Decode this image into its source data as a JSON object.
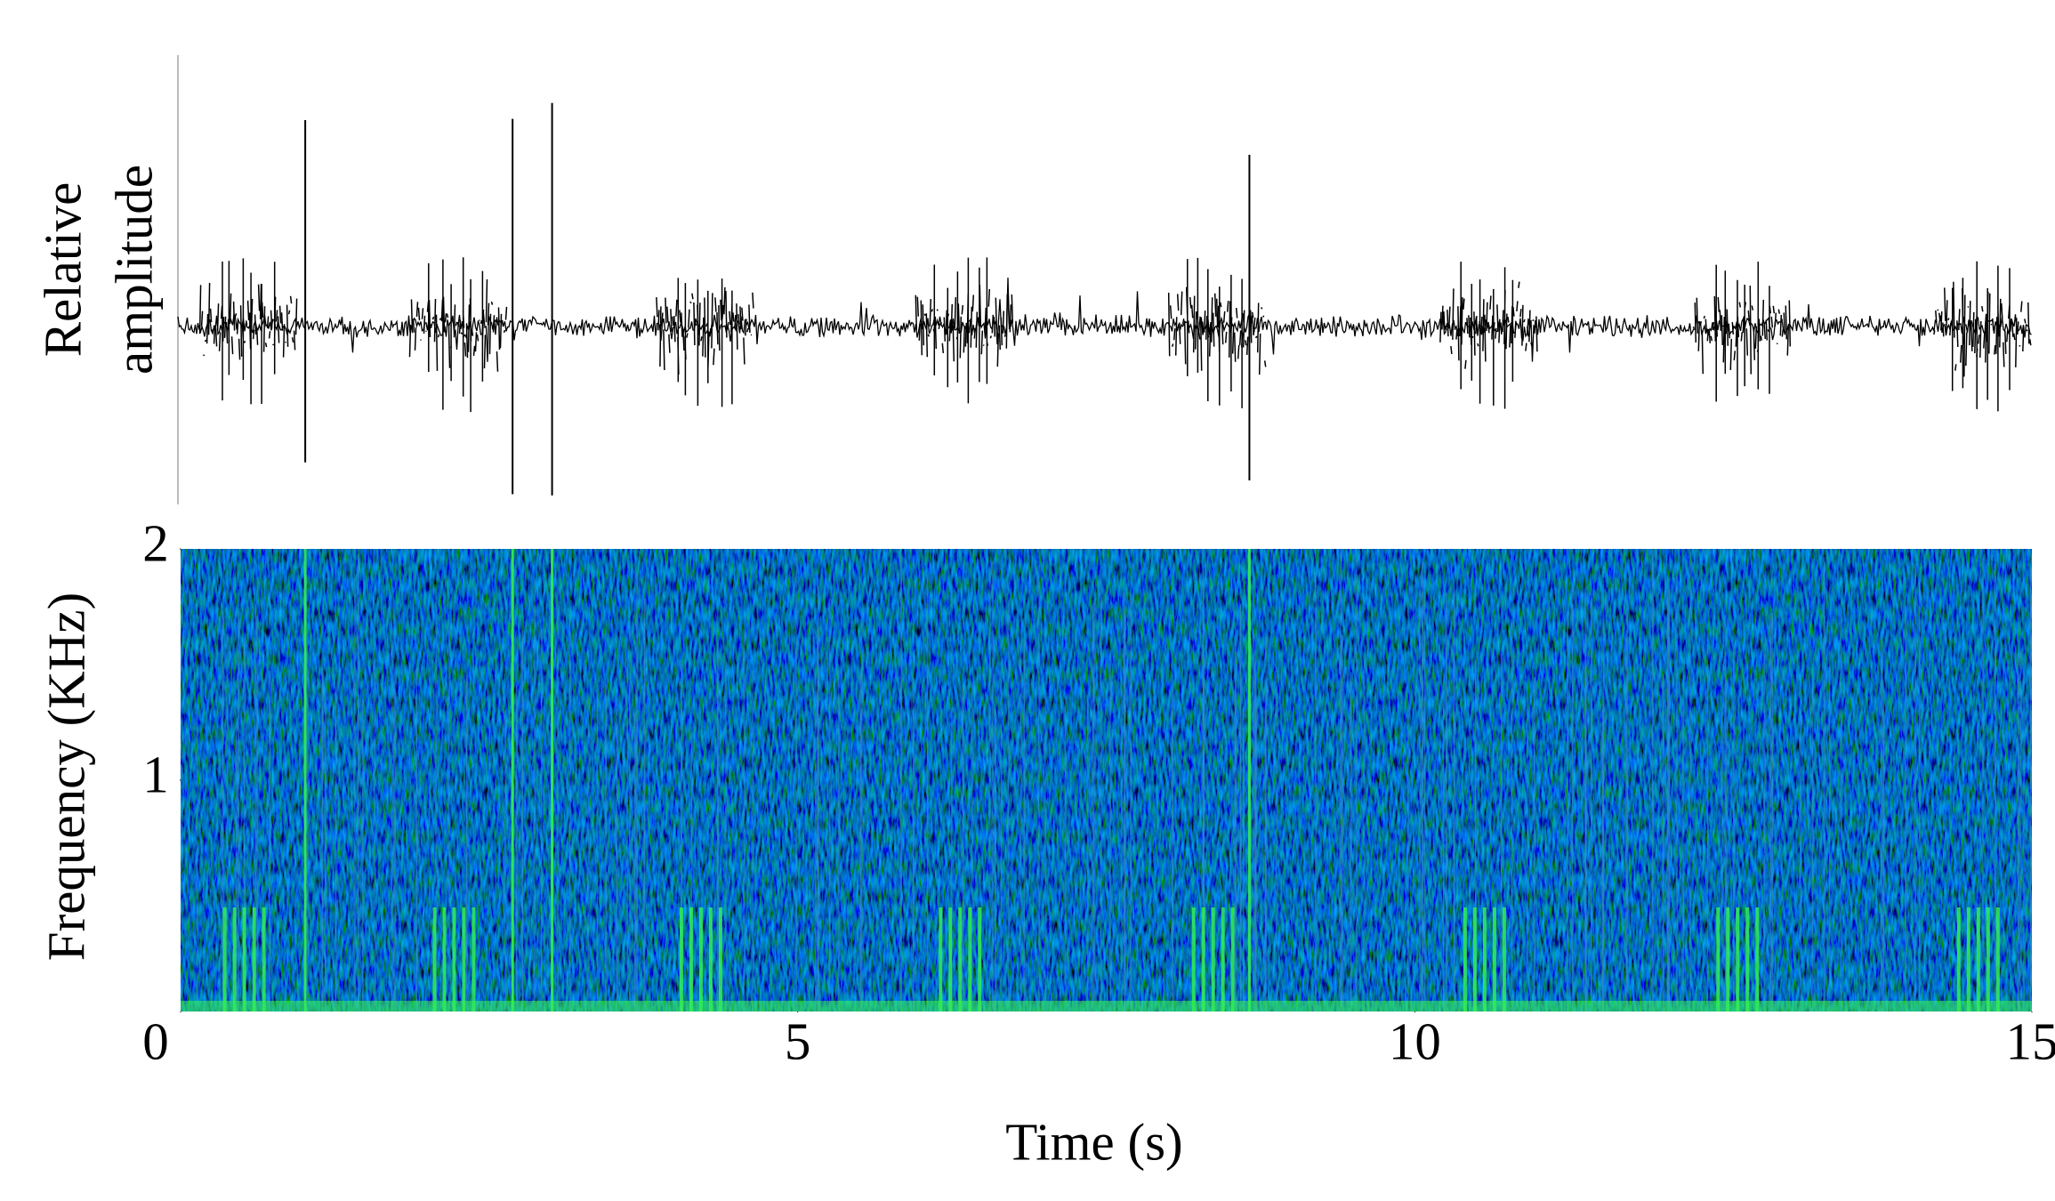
{
  "chart_data": [
    {
      "type": "waveform",
      "ylabel": [
        "Relative",
        "amplitude"
      ],
      "xlim": [
        0,
        15
      ],
      "bursts": [
        0.3,
        2.0,
        4.0,
        6.1,
        8.15,
        10.35,
        12.4,
        14.35
      ],
      "spikes": [
        1.01,
        2.69,
        3.01,
        8.66
      ],
      "color": "#000000"
    },
    {
      "type": "spectrogram",
      "ylabel": "Frequency (KHz)",
      "xlabel": "Time (s)",
      "xlim": [
        0,
        15
      ],
      "xticks": [
        0,
        5,
        10,
        15
      ],
      "ylim": [
        0,
        2
      ],
      "yticks": [
        1,
        2
      ],
      "bursts": [
        0.3,
        2.0,
        4.0,
        6.1,
        8.15,
        10.35,
        12.4,
        14.35
      ],
      "spikes": [
        1.01,
        2.69,
        3.01,
        8.66
      ],
      "color": "#33ee55",
      "background": "#0b1580"
    }
  ]
}
